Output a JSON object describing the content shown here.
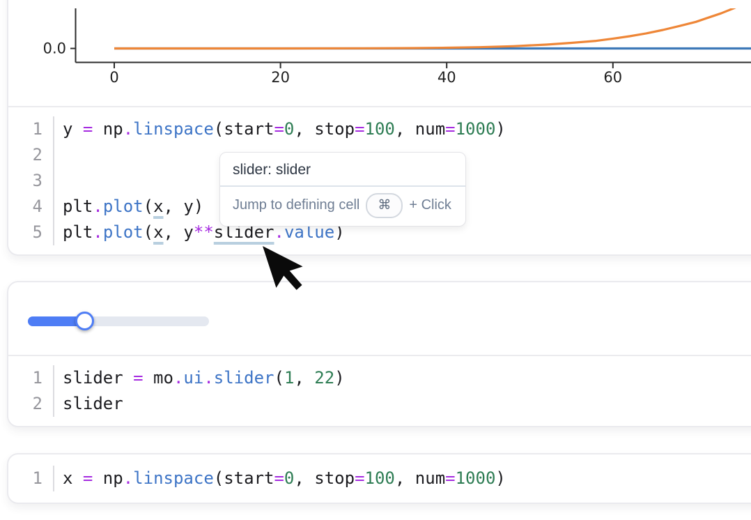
{
  "tooltip": {
    "title": "slider: slider",
    "action": "Jump to defining cell",
    "shortcut_key": "⌘",
    "suffix": "+ Click"
  },
  "slider": {
    "fraction": 0.315,
    "accent_color": "#4e7df5",
    "track_color": "#e4e8f0"
  },
  "colors": {
    "operator": "#a52ae0",
    "function": "#3d74c6",
    "number": "#2e7d54",
    "reference_underline": "#b8cfdf",
    "plot_blue": "#3d79b8",
    "plot_orange": "#ee8637"
  },
  "cells": [
    {
      "lines": [
        {
          "n": "1",
          "tokens": [
            [
              "p",
              "y "
            ],
            [
              "o",
              "="
            ],
            [
              "p",
              " np"
            ],
            [
              "o",
              "."
            ],
            [
              "f",
              "linspace"
            ],
            [
              "p",
              "(start"
            ],
            [
              "o",
              "="
            ],
            [
              "n",
              "0"
            ],
            [
              "p",
              ", stop"
            ],
            [
              "o",
              "="
            ],
            [
              "n",
              "100"
            ],
            [
              "p",
              ", num"
            ],
            [
              "o",
              "="
            ],
            [
              "n",
              "1000"
            ],
            [
              "p",
              ")"
            ]
          ]
        },
        {
          "n": "2",
          "tokens": []
        },
        {
          "n": "3",
          "tokens": []
        },
        {
          "n": "4",
          "tokens": [
            [
              "p",
              "plt"
            ],
            [
              "o",
              "."
            ],
            [
              "f",
              "plot"
            ],
            [
              "p",
              "("
            ],
            [
              "u",
              "x"
            ],
            [
              "p",
              ", y)"
            ]
          ]
        },
        {
          "n": "5",
          "tokens": [
            [
              "p",
              "plt"
            ],
            [
              "o",
              "."
            ],
            [
              "f",
              "plot"
            ],
            [
              "p",
              "("
            ],
            [
              "u",
              "x"
            ],
            [
              "p",
              ", y"
            ],
            [
              "o",
              "**"
            ],
            [
              "u",
              "slider"
            ],
            [
              "o",
              "."
            ],
            [
              "f",
              "value"
            ],
            [
              "p",
              ")"
            ]
          ]
        }
      ]
    },
    {
      "lines": [
        {
          "n": "1",
          "tokens": [
            [
              "p",
              "slider "
            ],
            [
              "o",
              "="
            ],
            [
              "p",
              " mo"
            ],
            [
              "o",
              "."
            ],
            [
              "f",
              "ui"
            ],
            [
              "o",
              "."
            ],
            [
              "f",
              "slider"
            ],
            [
              "p",
              "("
            ],
            [
              "n",
              "1"
            ],
            [
              "p",
              ", "
            ],
            [
              "n",
              "22"
            ],
            [
              "p",
              ")"
            ]
          ]
        },
        {
          "n": "2",
          "tokens": [
            [
              "p",
              "slider"
            ]
          ]
        }
      ]
    },
    {
      "lines": [
        {
          "n": "1",
          "tokens": [
            [
              "p",
              "x "
            ],
            [
              "o",
              "="
            ],
            [
              "p",
              " np"
            ],
            [
              "o",
              "."
            ],
            [
              "f",
              "linspace"
            ],
            [
              "p",
              "(start"
            ],
            [
              "o",
              "="
            ],
            [
              "n",
              "0"
            ],
            [
              "p",
              ", stop"
            ],
            [
              "o",
              "="
            ],
            [
              "n",
              "100"
            ],
            [
              "p",
              ", num"
            ],
            [
              "o",
              "="
            ],
            [
              "n",
              "1000"
            ],
            [
              "p",
              ")"
            ]
          ]
        }
      ]
    }
  ],
  "chart_data": {
    "type": "line",
    "title": "",
    "xlabel": "",
    "ylabel": "",
    "x_ticks": [
      0,
      20,
      40,
      60
    ],
    "y_ticks": [
      "0.0"
    ],
    "x_range_visible": [
      0,
      79
    ],
    "grid": false,
    "legend": false,
    "series": [
      {
        "name": "y",
        "color": "#3d79b8",
        "points": [
          [
            0,
            0
          ],
          [
            79.5,
            0
          ]
        ]
      },
      {
        "name": "y**slider.value",
        "color": "#ee8637",
        "points": [
          [
            0,
            0
          ],
          [
            10,
            0
          ],
          [
            20,
            0.0002
          ],
          [
            30,
            0.003
          ],
          [
            36,
            0.008
          ],
          [
            40,
            0.018
          ],
          [
            44,
            0.032
          ],
          [
            48,
            0.056
          ],
          [
            52,
            0.095
          ],
          [
            55,
            0.14
          ],
          [
            58,
            0.19
          ],
          [
            60,
            0.245
          ],
          [
            62,
            0.305
          ],
          [
            64,
            0.375
          ],
          [
            66,
            0.46
          ],
          [
            68,
            0.56
          ],
          [
            70,
            0.665
          ],
          [
            71.5,
            0.77
          ],
          [
            73,
            0.875
          ],
          [
            74.5,
            1.0
          ],
          [
            75.8,
            1.12
          ]
        ]
      }
    ]
  }
}
